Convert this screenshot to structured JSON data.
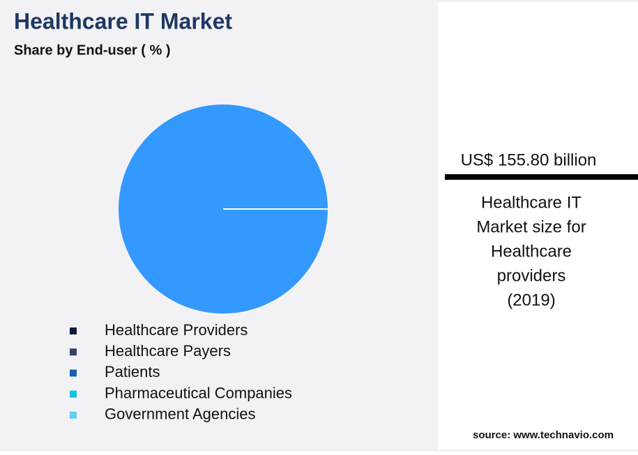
{
  "chart_data": {
    "type": "pie",
    "title": "Healthcare IT Market",
    "subtitle": "Share by End-user ( % )",
    "categories": [
      "Healthcare Providers",
      "Healthcare Payers",
      "Patients",
      "Pharmaceutical Companies",
      "Government Agencies"
    ],
    "values": [
      100,
      0,
      0,
      0,
      0
    ],
    "color": "#3399ff",
    "legend_colors": [
      "#0d1b3e",
      "#34426e",
      "#1560b0",
      "#12c2e0",
      "#5bd0ee"
    ]
  },
  "panel": {
    "value": "US$ 155.80 billion",
    "caption": [
      "Healthcare IT",
      "Market size for",
      "Healthcare",
      "providers",
      "(2019)"
    ]
  },
  "source": "source: www.technavio.com"
}
